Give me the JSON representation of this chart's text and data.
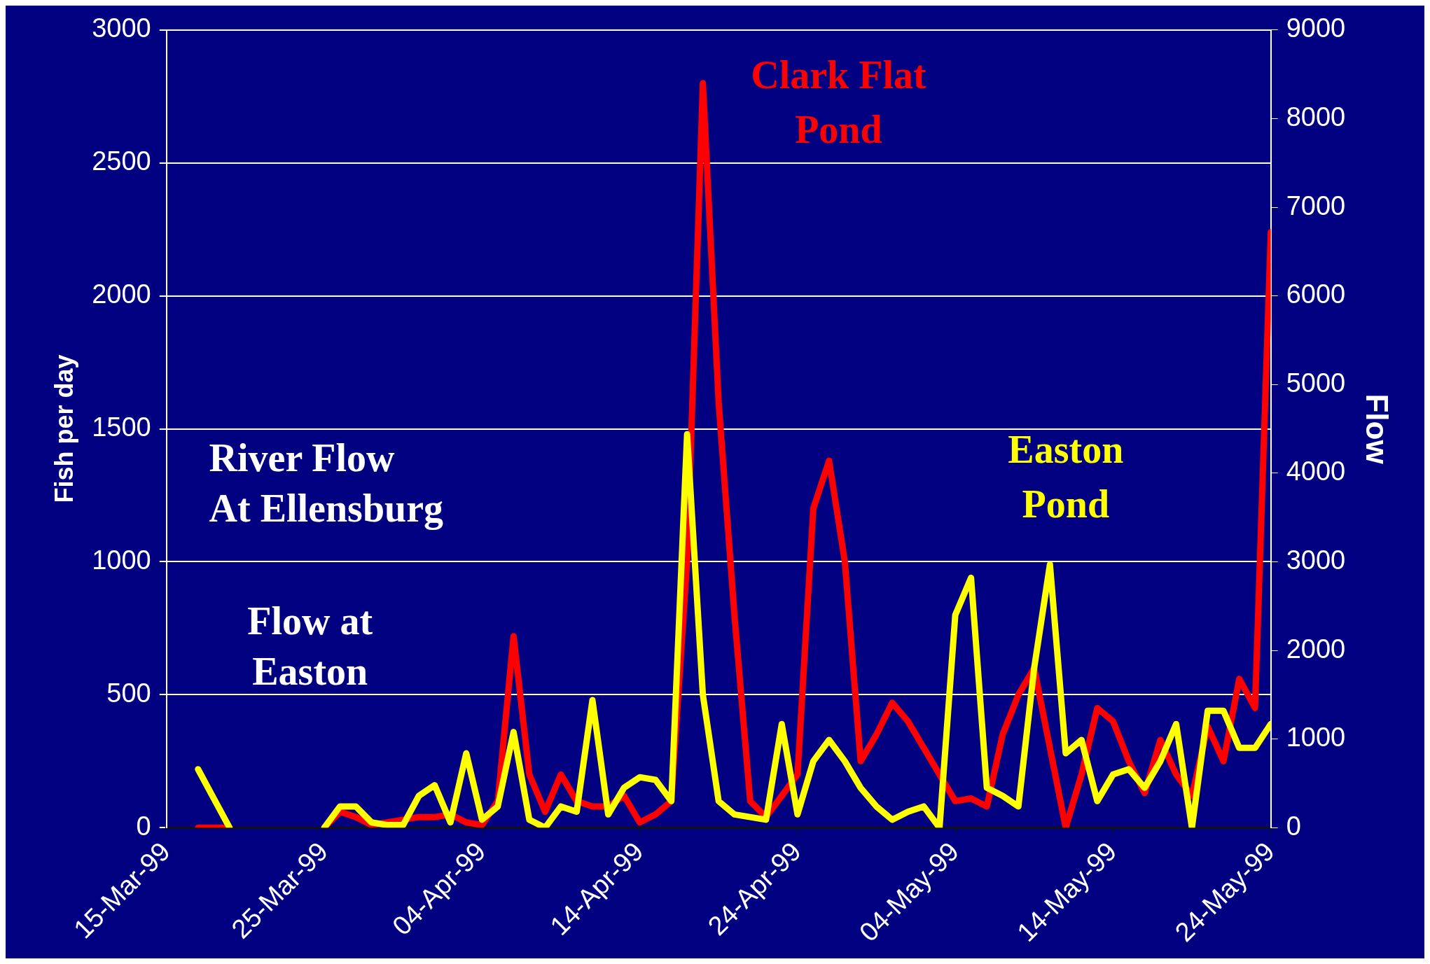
{
  "chart_data": {
    "type": "line",
    "xlabel": null,
    "ylabel": "Fish per day",
    "y2label": "Flow",
    "x": [
      "1999-03-17",
      "1999-03-18",
      "1999-03-19",
      "1999-03-20",
      "1999-03-21",
      "1999-03-22",
      "1999-03-23",
      "1999-03-24",
      "1999-03-25",
      "1999-03-26",
      "1999-03-27",
      "1999-03-28",
      "1999-03-29",
      "1999-03-30",
      "1999-03-31",
      "1999-04-01",
      "1999-04-02",
      "1999-04-03",
      "1999-04-04",
      "1999-04-05",
      "1999-04-06",
      "1999-04-07",
      "1999-04-08",
      "1999-04-09",
      "1999-04-10",
      "1999-04-11",
      "1999-04-12",
      "1999-04-13",
      "1999-04-14",
      "1999-04-15",
      "1999-04-16",
      "1999-04-17",
      "1999-04-18",
      "1999-04-19",
      "1999-04-20",
      "1999-04-21",
      "1999-04-22",
      "1999-04-23",
      "1999-04-24",
      "1999-04-25",
      "1999-04-26",
      "1999-04-27",
      "1999-04-28",
      "1999-04-29",
      "1999-04-30",
      "1999-05-01",
      "1999-05-02",
      "1999-05-03",
      "1999-05-04",
      "1999-05-05",
      "1999-05-06",
      "1999-05-07",
      "1999-05-08",
      "1999-05-09",
      "1999-05-10",
      "1999-05-11",
      "1999-05-12",
      "1999-05-13",
      "1999-05-14",
      "1999-05-15",
      "1999-05-16",
      "1999-05-17",
      "1999-05-18",
      "1999-05-19",
      "1999-05-20",
      "1999-05-21",
      "1999-05-22",
      "1999-05-23",
      "1999-05-24"
    ],
    "series": [
      {
        "name": "Easton Pond",
        "color": "#ffff00",
        "values": [
          220,
          110,
          0,
          null,
          null,
          null,
          null,
          null,
          0,
          80,
          80,
          20,
          10,
          10,
          120,
          160,
          20,
          280,
          30,
          80,
          360,
          30,
          0,
          80,
          60,
          480,
          50,
          150,
          190,
          180,
          100,
          1480,
          500,
          100,
          50,
          40,
          30,
          390,
          50,
          250,
          330,
          250,
          150,
          80,
          30,
          60,
          80,
          0,
          800,
          940,
          150,
          120,
          80,
          600,
          990,
          280,
          330,
          100,
          200,
          220,
          150,
          250,
          390,
          0,
          440,
          440,
          300,
          300,
          390
        ]
      },
      {
        "name": "Clark Flat Pond",
        "color": "#ff0000",
        "values": [
          0,
          0,
          0,
          null,
          null,
          null,
          null,
          null,
          0,
          60,
          40,
          10,
          20,
          30,
          40,
          40,
          50,
          20,
          10,
          100,
          720,
          200,
          60,
          200,
          100,
          80,
          80,
          120,
          20,
          50,
          100,
          1000,
          2800,
          1600,
          800,
          100,
          40,
          120,
          200,
          1200,
          1380,
          1000,
          250,
          350,
          470,
          400,
          300,
          200,
          100,
          110,
          80,
          350,
          500,
          600,
          300,
          0,
          200,
          450,
          400,
          250,
          130,
          330,
          200,
          120,
          380,
          250,
          560,
          450,
          2240
        ]
      }
    ],
    "xlim": [
      "1999-03-15",
      "1999-05-24"
    ],
    "xticks": [
      {
        "value": "1999-03-15",
        "label": "15-Mar-99"
      },
      {
        "value": "1999-03-25",
        "label": "25-Mar-99"
      },
      {
        "value": "1999-04-04",
        "label": "04-Apr-99"
      },
      {
        "value": "1999-04-14",
        "label": "14-Apr-99"
      },
      {
        "value": "1999-04-24",
        "label": "24-Apr-99"
      },
      {
        "value": "1999-05-04",
        "label": "04-May-99"
      },
      {
        "value": "1999-05-14",
        "label": "14-May-99"
      },
      {
        "value": "1999-05-24",
        "label": "24-May-99"
      }
    ],
    "ylim": [
      0,
      3000
    ],
    "yticks": [
      0,
      500,
      1000,
      1500,
      2000,
      2500,
      3000
    ],
    "y2lim": [
      0,
      9000
    ],
    "y2ticks": [
      0,
      1000,
      2000,
      3000,
      4000,
      5000,
      6000,
      7000,
      8000,
      9000
    ],
    "annotations": [
      "River Flow At Ellensburg",
      "Flow at Easton"
    ],
    "grid": "y",
    "legend": false,
    "marker": "none",
    "line_style": "solid"
  }
}
